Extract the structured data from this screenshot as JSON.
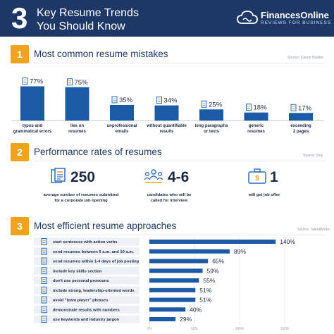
{
  "header": {
    "number": "3",
    "title_line1": "Key Resume Trends",
    "title_line2": "You Should Know",
    "brand_name": "FinancesOnline",
    "brand_tagline": "REVIEWS FOR BUSINESS"
  },
  "section1": {
    "number": "1",
    "title": "Most common resume mistakes",
    "source": "Source: Career Builder"
  },
  "section2": {
    "number": "2",
    "title": "Performance rates of resumes",
    "source": "Source: Zety",
    "stats": [
      {
        "value": "250",
        "label_line1": "average number of resumes submitted",
        "label_line2": "for a corporate job opening",
        "icon": "resumes-stack-icon"
      },
      {
        "value": "4-6",
        "label_line1": "candidates who will be",
        "label_line2": "called for interview",
        "icon": "candidates-group-icon"
      },
      {
        "value": "1",
        "label_line1": "will get job offer",
        "label_line2": "",
        "icon": "briefcase-icon"
      }
    ]
  },
  "section3": {
    "number": "3",
    "title": "Most efficient resume approaches",
    "source": "Source: TalentWorks"
  },
  "chart_data": [
    {
      "type": "bar",
      "title": "Most common resume mistakes",
      "categories": [
        [
          "typos and",
          "grammatical errors"
        ],
        [
          "lies on",
          "resumes"
        ],
        [
          "unprofessional",
          "emails"
        ],
        [
          "without quantifiable",
          "results"
        ],
        [
          "long paragraphs",
          "or texts"
        ],
        [
          "generic",
          "resumes"
        ],
        [
          "exceeding",
          "2 pages"
        ]
      ],
      "values": [
        77,
        75,
        35,
        34,
        25,
        18,
        17
      ],
      "value_labels": [
        "77%",
        "75%",
        "35%",
        "34%",
        "25%",
        "18%",
        "17%"
      ],
      "icons": [
        "warning-document-icon",
        "lie-document-icon",
        "email-icon",
        "chart-document-icon",
        "paragraph-document-icon",
        "generic-document-icon",
        "pages-icon"
      ],
      "ylim": [
        0,
        100
      ],
      "grid": false,
      "color": "#1d5aa5"
    },
    {
      "type": "bar",
      "orientation": "horizontal",
      "title": "Most efficient resume approaches",
      "categories": [
        "start sentences with action verbs",
        "send resumes between 6 a.m. and 10 a.m.",
        "send resumes within 1-4 days of job posting",
        "include key skills section",
        "don't use personal pronouns",
        "include strong, leadership-oriented words",
        "avoid \"team player\" phrases",
        "demonstrate results with numbers",
        "use keywords and industry jargon"
      ],
      "values": [
        140,
        89,
        65,
        59,
        55,
        51,
        51,
        40,
        29
      ],
      "value_labels": [
        "140%",
        "89%",
        "65%",
        "59%",
        "55%",
        "51%",
        "51%",
        "40%",
        "29%"
      ],
      "icons": [
        "verb-icon",
        "clock-icon",
        "calendar-icon",
        "list-icon",
        "person-icon",
        "speech-icon",
        "team-icon",
        "numbers-icon",
        "keyword-icon"
      ],
      "xlim": [
        0,
        150
      ],
      "xticks": [
        "0%",
        "50%",
        "100%",
        "150%"
      ],
      "grid": true,
      "color": "#1d5aa5"
    }
  ]
}
